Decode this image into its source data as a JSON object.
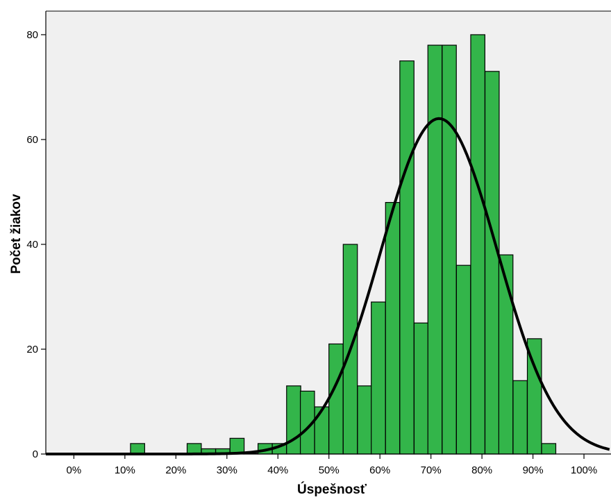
{
  "chart_data": {
    "type": "bar",
    "title": "",
    "xlabel": "Úspešnosť",
    "ylabel": "Počet žiakov",
    "x_unit": "percent",
    "xlim": [
      -5.5,
      105.3
    ],
    "ylim": [
      0,
      84.5
    ],
    "x_ticks": [
      0,
      10,
      20,
      30,
      40,
      50,
      60,
      70,
      80,
      90,
      100
    ],
    "x_tick_labels": [
      "0%",
      "10%",
      "20%",
      "30%",
      "40%",
      "50%",
      "60%",
      "70%",
      "80%",
      "90%",
      "100%"
    ],
    "y_ticks": [
      0,
      20,
      40,
      60,
      80
    ],
    "y_tick_labels": [
      "0",
      "20",
      "40",
      "60",
      "80"
    ],
    "bin_width": 2.78,
    "bins": [
      {
        "start": 11.1,
        "count": 2
      },
      {
        "start": 13.9,
        "count": 0
      },
      {
        "start": 16.7,
        "count": 0
      },
      {
        "start": 19.4,
        "count": 0
      },
      {
        "start": 22.2,
        "count": 2
      },
      {
        "start": 25.0,
        "count": 1
      },
      {
        "start": 27.8,
        "count": 1
      },
      {
        "start": 30.6,
        "count": 3
      },
      {
        "start": 33.3,
        "count": 0
      },
      {
        "start": 36.1,
        "count": 2
      },
      {
        "start": 38.9,
        "count": 2
      },
      {
        "start": 41.7,
        "count": 13
      },
      {
        "start": 44.4,
        "count": 12
      },
      {
        "start": 47.2,
        "count": 9
      },
      {
        "start": 50.0,
        "count": 21
      },
      {
        "start": 52.8,
        "count": 40
      },
      {
        "start": 55.6,
        "count": 13
      },
      {
        "start": 58.3,
        "count": 29
      },
      {
        "start": 61.1,
        "count": 48
      },
      {
        "start": 63.9,
        "count": 75
      },
      {
        "start": 66.7,
        "count": 25
      },
      {
        "start": 69.4,
        "count": 78
      },
      {
        "start": 72.2,
        "count": 78
      },
      {
        "start": 75.0,
        "count": 36
      },
      {
        "start": 77.8,
        "count": 80
      },
      {
        "start": 80.6,
        "count": 73
      },
      {
        "start": 83.3,
        "count": 38
      },
      {
        "start": 86.1,
        "count": 14
      },
      {
        "start": 88.9,
        "count": 22
      },
      {
        "start": 91.7,
        "count": 2
      }
    ],
    "normal_curve": {
      "mean": 71.6,
      "sd": 11.4,
      "peak": 64
    },
    "grid": false,
    "colors": {
      "bar_fill": "#33b54a",
      "bar_stroke": "#000000",
      "plot_background": "#f0f0f0",
      "curve": "#000000"
    }
  }
}
